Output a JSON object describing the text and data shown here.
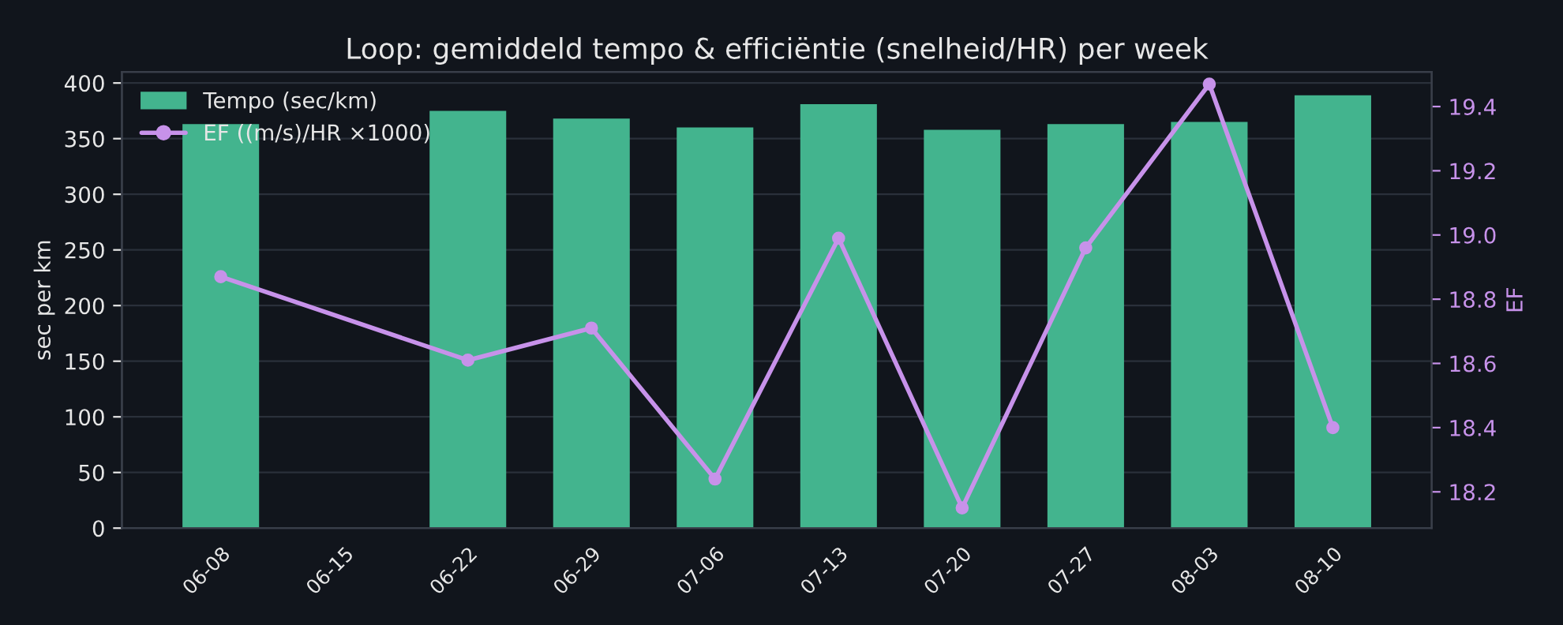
{
  "chart_data": {
    "type": "bar",
    "title": "Loop: gemiddeld tempo & efficiëntie (snelheid/HR) per week",
    "categories": [
      "06-08",
      "06-15",
      "06-22",
      "06-29",
      "07-06",
      "07-13",
      "07-20",
      "07-27",
      "08-03",
      "08-10"
    ],
    "ylabel": "sec per km",
    "y2label": "EF",
    "series": [
      {
        "name": "Tempo (sec/km)",
        "color": "#43b48e",
        "values": [
          363,
          null,
          375,
          368,
          360,
          381,
          358,
          363,
          365,
          389
        ]
      },
      {
        "name": "EF ((m/s)/HR ×1000)",
        "type": "line",
        "axis": "y2",
        "color": "#c792ea",
        "marker": "circle",
        "values": [
          18.87,
          null,
          18.61,
          18.71,
          18.24,
          18.99,
          18.15,
          18.96,
          19.47,
          18.4
        ]
      }
    ],
    "ylim": [
      0,
      410
    ],
    "yticks": [
      0,
      50,
      100,
      150,
      200,
      250,
      300,
      350,
      400
    ],
    "y2lim": [
      18.087,
      19.508
    ],
    "y2ticks": [
      18.2,
      18.4,
      18.6,
      18.8,
      {
        "value": 19,
        "label": "19.0"
      },
      19.2,
      19.4
    ],
    "grid": "y",
    "legend": "top left"
  }
}
